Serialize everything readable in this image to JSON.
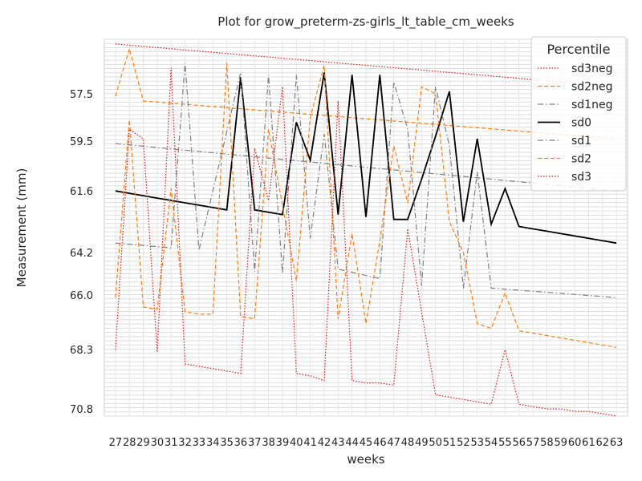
{
  "chart_data": {
    "type": "line",
    "title": "Plot for grow_preterm-zs-girls_lt_table_cm_weeks",
    "xlabel": "weeks",
    "ylabel": "Measurement (mm)",
    "x": [
      27,
      28,
      29,
      30,
      31,
      32,
      33,
      34,
      35,
      36,
      37,
      38,
      39,
      40,
      41,
      42,
      43,
      44,
      45,
      46,
      47,
      48,
      49,
      50,
      51,
      52,
      53,
      54,
      55,
      56,
      57,
      58,
      59,
      60,
      61,
      62,
      63
    ],
    "x_tick_labels": [
      "27",
      "28",
      "29",
      "30",
      "31",
      "32",
      "33",
      "34",
      "35",
      "36",
      "37",
      "38",
      "39",
      "40",
      "41",
      "42",
      "43",
      "44",
      "45",
      "46",
      "47",
      "48",
      "49",
      "50",
      "51",
      "52",
      "53",
      "54",
      "55",
      "56",
      "57",
      "58",
      "59",
      "60",
      "61",
      "62",
      "63"
    ],
    "y_tick_labels": [
      "57.5",
      "59.5",
      "61.6",
      "64.2",
      "66.0",
      "68.3",
      "70.8"
    ],
    "y_ticks_values": [
      57.5,
      59.5,
      61.6,
      64.2,
      66.0,
      68.3,
      70.8
    ],
    "y_axis_inverted": true,
    "ylim": [
      55.2,
      71.1
    ],
    "grid": true,
    "legend_title": "Percentile",
    "legend_position": "top-right",
    "series": [
      {
        "name": "sd3neg",
        "style": "dotted",
        "color": "#e41a1c",
        "values": [
          55.4,
          null,
          null,
          null,
          null,
          null,
          null,
          null,
          null,
          null,
          null,
          null,
          null,
          null,
          null,
          null,
          null,
          null,
          null,
          null,
          null,
          null,
          null,
          null,
          null,
          null,
          null,
          null,
          null,
          null,
          null,
          null,
          null,
          null,
          null,
          null,
          57.2
        ]
      },
      {
        "name": "sd2neg",
        "style": "dashed",
        "color": "#ff7f0e",
        "values": [
          57.6,
          55.6,
          57.8,
          null,
          null,
          null,
          null,
          null,
          null,
          null,
          null,
          null,
          null,
          null,
          null,
          null,
          null,
          null,
          null,
          null,
          null,
          null,
          null,
          null,
          null,
          null,
          null,
          null,
          null,
          null,
          null,
          null,
          null,
          null,
          null,
          null,
          59.4
        ]
      },
      {
        "name": "sd1neg",
        "style": "dashdot",
        "color": "#808080",
        "values": [
          59.6,
          null,
          null,
          null,
          null,
          null,
          null,
          null,
          null,
          null,
          null,
          null,
          null,
          null,
          null,
          null,
          null,
          null,
          null,
          null,
          null,
          null,
          null,
          null,
          null,
          null,
          null,
          null,
          null,
          null,
          null,
          null,
          null,
          null,
          null,
          null,
          61.6
        ]
      },
      {
        "name": "sd0",
        "style": "solid",
        "color": "#000000",
        "values": [
          61.6,
          61.7,
          61.8,
          61.9,
          62.0,
          62.1,
          62.2,
          62.3,
          62.4,
          56.8,
          62.4,
          62.5,
          62.6,
          58.7,
          60.3,
          56.6,
          62.6,
          56.7,
          62.7,
          56.7,
          62.8,
          62.8,
          61.1,
          59.3,
          57.4,
          62.9,
          59.4,
          63.0,
          61.5,
          63.1,
          63.2,
          63.3,
          63.4,
          63.5,
          63.6,
          63.7,
          63.8
        ]
      },
      {
        "name": "sd1",
        "style": "dashdot",
        "color": "#808080",
        "values": [
          63.8,
          null,
          null,
          null,
          64.0,
          56.2,
          64.1,
          null,
          null,
          56.6,
          65.0,
          56.7,
          65.1,
          56.7,
          63.6,
          59.2,
          64.9,
          null,
          null,
          65.3,
          57.0,
          59.0,
          65.6,
          57.2,
          59.7,
          65.7,
          60.8,
          65.7,
          null,
          null,
          null,
          null,
          null,
          null,
          null,
          null,
          66.1
        ]
      },
      {
        "name": "sd2",
        "style": "dashed",
        "color": "#ff7f0e",
        "values": [
          66.1,
          58.6,
          66.5,
          66.6,
          61.5,
          66.7,
          66.8,
          66.8,
          56.2,
          66.9,
          67.0,
          59.0,
          62.2,
          65.4,
          58.5,
          56.3,
          67.0,
          63.4,
          67.2,
          63.7,
          59.7,
          62.1,
          57.2,
          57.5,
          62.9,
          64.2,
          67.2,
          67.4,
          65.9,
          67.5,
          67.6,
          67.7,
          67.8,
          67.9,
          68.0,
          68.1,
          68.2
        ]
      },
      {
        "name": "sd3",
        "style": "dotted",
        "color": "#e41a1c",
        "values": [
          68.3,
          59.0,
          59.4,
          68.4,
          56.4,
          68.9,
          69.0,
          69.1,
          69.2,
          69.3,
          59.8,
          62.0,
          57.2,
          69.3,
          69.4,
          69.6,
          57.8,
          69.6,
          69.7,
          69.7,
          69.8,
          63.2,
          66.7,
          70.2,
          70.3,
          70.4,
          70.5,
          70.6,
          68.3,
          70.6,
          70.7,
          70.8,
          70.8,
          70.9,
          70.9,
          71.0,
          71.1
        ]
      }
    ]
  }
}
